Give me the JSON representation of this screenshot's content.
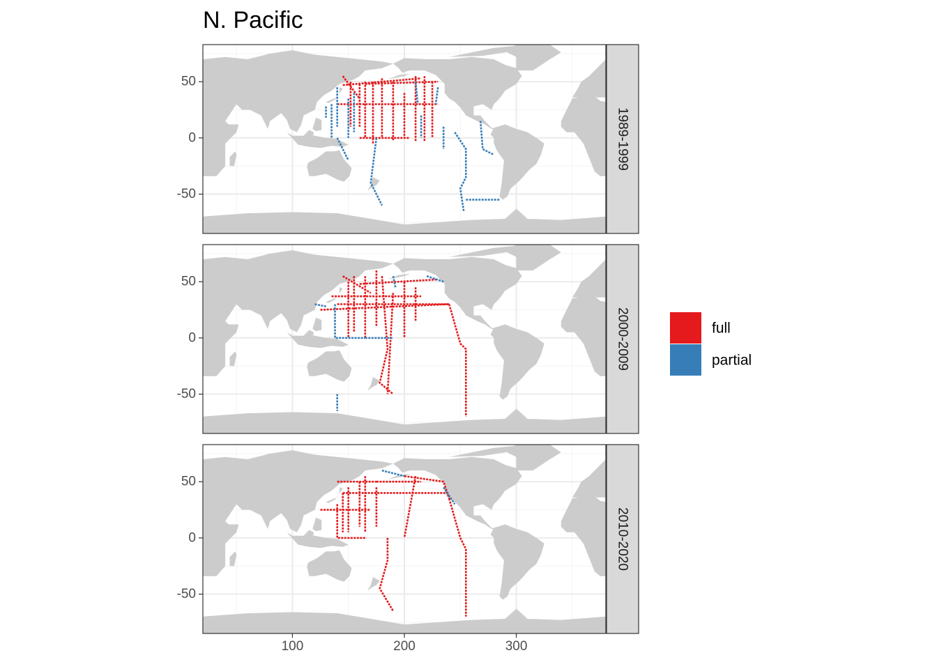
{
  "chart_data": {
    "type": "map",
    "title": "N. Pacific",
    "x_ticks": [
      100,
      200,
      300
    ],
    "y_ticks": [
      50,
      0,
      -50
    ],
    "xlim": [
      20,
      380
    ],
    "ylim": [
      -85,
      83
    ],
    "colors": {
      "full": "#e41a1c",
      "partial": "#377eb8",
      "land": "#cccccc",
      "grid": "#ebebeb"
    },
    "legend": {
      "placement": "right",
      "items": [
        {
          "key": "full",
          "label": "full",
          "color": "#e41a1c"
        },
        {
          "key": "partial",
          "label": "partial",
          "color": "#377eb8"
        }
      ]
    },
    "panels": [
      {
        "strip": "1989-1999",
        "tracks": [
          {
            "cls": "full",
            "pts": [
              [
                165,
                50
              ],
              [
                165,
                0
              ]
            ]
          },
          {
            "cls": "full",
            "pts": [
              [
                172,
                50
              ],
              [
                172,
                -5
              ]
            ]
          },
          {
            "cls": "full",
            "pts": [
              [
                180,
                53
              ],
              [
                180,
                0
              ]
            ]
          },
          {
            "cls": "full",
            "pts": [
              [
                190,
                50
              ],
              [
                190,
                -2
              ]
            ]
          },
          {
            "cls": "full",
            "pts": [
              [
                200,
                40
              ],
              [
                200,
                0
              ]
            ]
          },
          {
            "cls": "full",
            "pts": [
              [
                210,
                55
              ],
              [
                210,
                -3
              ]
            ]
          },
          {
            "cls": "full",
            "pts": [
              [
                218,
                55
              ],
              [
                218,
                -3
              ]
            ]
          },
          {
            "cls": "full",
            "pts": [
              [
                225,
                50
              ],
              [
                225,
                0
              ]
            ]
          },
          {
            "cls": "full",
            "pts": [
              [
                152,
                50
              ],
              [
                152,
                10
              ]
            ]
          },
          {
            "cls": "full",
            "pts": [
              [
                160,
                48
              ],
              [
                160,
                10
              ]
            ]
          },
          {
            "cls": "full",
            "pts": [
              [
                165,
                48
              ],
              [
                230,
                50
              ]
            ]
          },
          {
            "cls": "full",
            "pts": [
              [
                140,
                30
              ],
              [
                230,
                30
              ]
            ]
          },
          {
            "cls": "full",
            "pts": [
              [
                145,
                47
              ],
              [
                215,
                53
              ]
            ]
          },
          {
            "cls": "full",
            "pts": [
              [
                160,
                0
              ],
              [
                205,
                0
              ]
            ]
          },
          {
            "cls": "full",
            "pts": [
              [
                145,
                55
              ],
              [
                160,
                35
              ]
            ]
          },
          {
            "cls": "partial",
            "pts": [
              [
                135,
                30
              ],
              [
                135,
                0
              ]
            ]
          },
          {
            "cls": "partial",
            "pts": [
              [
                140,
                45
              ],
              [
                140,
                10
              ]
            ]
          },
          {
            "cls": "partial",
            "pts": [
              [
                130,
                28
              ],
              [
                130,
                18
              ]
            ]
          },
          {
            "cls": "partial",
            "pts": [
              [
                150,
                35
              ],
              [
                150,
                0
              ]
            ]
          },
          {
            "cls": "partial",
            "pts": [
              [
                155,
                40
              ],
              [
                155,
                5
              ]
            ]
          },
          {
            "cls": "partial",
            "pts": [
              [
                175,
                0
              ],
              [
                170,
                -40
              ],
              [
                180,
                -60
              ]
            ]
          },
          {
            "cls": "partial",
            "pts": [
              [
                210,
                50
              ],
              [
                212,
                30
              ]
            ]
          },
          {
            "cls": "partial",
            "pts": [
              [
                230,
                45
              ],
              [
                228,
                30
              ]
            ]
          },
          {
            "cls": "partial",
            "pts": [
              [
                235,
                10
              ],
              [
                235,
                -10
              ]
            ]
          },
          {
            "cls": "partial",
            "pts": [
              [
                245,
                5
              ],
              [
                255,
                -10
              ],
              [
                255,
                -35
              ],
              [
                250,
                -45
              ],
              [
                253,
                -65
              ]
            ]
          },
          {
            "cls": "partial",
            "pts": [
              [
                255,
                -55
              ],
              [
                285,
                -55
              ]
            ]
          },
          {
            "cls": "partial",
            "pts": [
              [
                268,
                15
              ],
              [
                270,
                -10
              ],
              [
                280,
                -15
              ]
            ]
          },
          {
            "cls": "partial",
            "pts": [
              [
                215,
                20
              ],
              [
                215,
                0
              ]
            ]
          },
          {
            "cls": "partial",
            "pts": [
              [
                140,
                0
              ],
              [
                150,
                -20
              ]
            ]
          }
        ]
      },
      {
        "strip": "2000-2009",
        "tracks": [
          {
            "cls": "full",
            "pts": [
              [
                125,
                25
              ],
              [
                240,
                30
              ]
            ]
          },
          {
            "cls": "full",
            "pts": [
              [
                140,
                30
              ],
              [
                240,
                30
              ]
            ]
          },
          {
            "cls": "full",
            "pts": [
              [
                135,
                37
              ],
              [
                215,
                37
              ]
            ]
          },
          {
            "cls": "full",
            "pts": [
              [
                150,
                50
              ],
              [
                150,
                0
              ]
            ]
          },
          {
            "cls": "full",
            "pts": [
              [
                155,
                55
              ],
              [
                155,
                5
              ]
            ]
          },
          {
            "cls": "full",
            "pts": [
              [
                165,
                55
              ],
              [
                165,
                0
              ]
            ]
          },
          {
            "cls": "full",
            "pts": [
              [
                175,
                60
              ],
              [
                175,
                10
              ]
            ]
          },
          {
            "cls": "full",
            "pts": [
              [
                180,
                55
              ],
              [
                185,
                -10
              ],
              [
                178,
                -40
              ],
              [
                190,
                -50
              ]
            ]
          },
          {
            "cls": "full",
            "pts": [
              [
                190,
                40
              ],
              [
                185,
                -50
              ]
            ]
          },
          {
            "cls": "full",
            "pts": [
              [
                200,
                50
              ],
              [
                200,
                0
              ]
            ]
          },
          {
            "cls": "full",
            "pts": [
              [
                210,
                45
              ],
              [
                210,
                15
              ]
            ]
          },
          {
            "cls": "full",
            "pts": [
              [
                240,
                30
              ],
              [
                250,
                -5
              ],
              [
                255,
                -10
              ],
              [
                255,
                -70
              ]
            ]
          },
          {
            "cls": "full",
            "pts": [
              [
                160,
                48
              ],
              [
                230,
                52
              ]
            ]
          },
          {
            "cls": "full",
            "pts": [
              [
                145,
                55
              ],
              [
                170,
                40
              ]
            ]
          },
          {
            "cls": "partial",
            "pts": [
              [
                138,
                30
              ],
              [
                138,
                0
              ],
              [
                165,
                0
              ]
            ]
          },
          {
            "cls": "partial",
            "pts": [
              [
                165,
                0
              ],
              [
                190,
                0
              ]
            ]
          },
          {
            "cls": "partial",
            "pts": [
              [
                120,
                30
              ],
              [
                130,
                28
              ]
            ]
          },
          {
            "cls": "partial",
            "pts": [
              [
                220,
                55
              ],
              [
                235,
                50
              ]
            ]
          },
          {
            "cls": "partial",
            "pts": [
              [
                190,
                55
              ],
              [
                192,
                45
              ]
            ]
          },
          {
            "cls": "partial",
            "pts": [
              [
                140,
                -50
              ],
              [
                140,
                -65
              ]
            ]
          }
        ]
      },
      {
        "strip": "2010-2020",
        "tracks": [
          {
            "cls": "full",
            "pts": [
              [
                145,
                40
              ],
              [
                240,
                40
              ]
            ]
          },
          {
            "cls": "full",
            "pts": [
              [
                125,
                25
              ],
              [
                170,
                25
              ]
            ]
          },
          {
            "cls": "full",
            "pts": [
              [
                140,
                30
              ],
              [
                140,
                0
              ],
              [
                165,
                0
              ]
            ]
          },
          {
            "cls": "full",
            "pts": [
              [
                145,
                40
              ],
              [
                145,
                5
              ]
            ]
          },
          {
            "cls": "full",
            "pts": [
              [
                150,
                45
              ],
              [
                150,
                5
              ]
            ]
          },
          {
            "cls": "full",
            "pts": [
              [
                160,
                50
              ],
              [
                160,
                10
              ]
            ]
          },
          {
            "cls": "full",
            "pts": [
              [
                165,
                55
              ],
              [
                165,
                5
              ]
            ]
          },
          {
            "cls": "full",
            "pts": [
              [
                175,
                45
              ],
              [
                175,
                10
              ]
            ]
          },
          {
            "cls": "full",
            "pts": [
              [
                140,
                50
              ],
              [
                175,
                50
              ]
            ]
          },
          {
            "cls": "full",
            "pts": [
              [
                185,
                0
              ],
              [
                185,
                -20
              ],
              [
                178,
                -45
              ],
              [
                190,
                -65
              ]
            ]
          },
          {
            "cls": "full",
            "pts": [
              [
                210,
                55
              ],
              [
                200,
                0
              ]
            ]
          },
          {
            "cls": "full",
            "pts": [
              [
                240,
                35
              ],
              [
                250,
                0
              ],
              [
                255,
                -10
              ],
              [
                255,
                -70
              ]
            ]
          },
          {
            "cls": "full",
            "pts": [
              [
                200,
                55
              ],
              [
                235,
                50
              ],
              [
                240,
                35
              ]
            ]
          },
          {
            "cls": "full",
            "pts": [
              [
                175,
                50
              ],
              [
                215,
                50
              ]
            ]
          },
          {
            "cls": "partial",
            "pts": [
              [
                180,
                60
              ],
              [
                200,
                55
              ]
            ]
          },
          {
            "cls": "partial",
            "pts": [
              [
                235,
                45
              ],
              [
                245,
                30
              ]
            ]
          }
        ]
      }
    ]
  }
}
